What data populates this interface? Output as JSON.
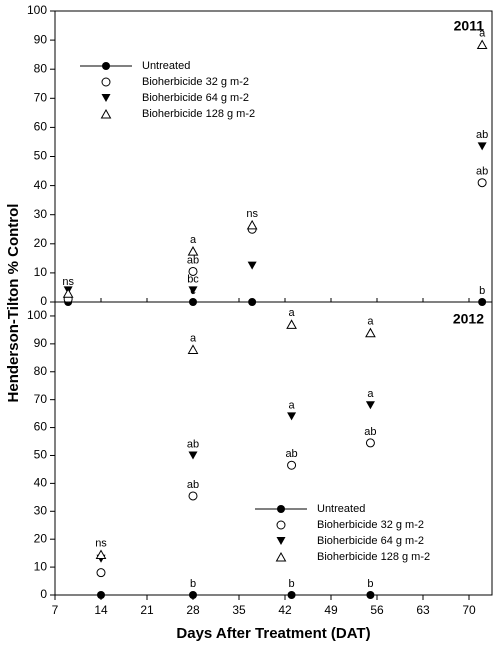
{
  "chart_data": [
    {
      "type": "scatter",
      "panel_label": "2011",
      "y_label": "Henderson-Tilton % Control",
      "x": [
        9,
        28,
        37,
        72
      ],
      "xlim": [
        7,
        73.5
      ],
      "xticks": [
        7,
        14,
        21,
        28,
        35,
        42,
        49,
        56,
        63,
        70
      ],
      "ylim": [
        0,
        100
      ],
      "yticks": [
        0,
        10,
        20,
        30,
        40,
        50,
        60,
        70,
        80,
        90,
        100
      ],
      "legend": "upper left",
      "series": [
        {
          "name": "Untreated",
          "marker": "filled-circle",
          "line": true,
          "color": "#000000",
          "values": [
            0,
            0,
            0,
            0
          ],
          "letters": [
            null,
            "c",
            null,
            "b"
          ]
        },
        {
          "name": "Bioherbicide 32 g m-2",
          "marker": "open-circle",
          "line": false,
          "color": "#000000",
          "values": [
            1,
            10.5,
            25,
            41
          ],
          "letters": [
            null,
            "ab",
            null,
            "ab"
          ]
        },
        {
          "name": "Bioherbicide 64 g m-2",
          "marker": "filled-down-triangle",
          "line": false,
          "color": "#000000",
          "values": [
            4,
            4,
            12.5,
            53.5
          ],
          "letters": [
            null,
            "bc",
            null,
            "ab"
          ]
        },
        {
          "name": "Bioherbicide 128 g m-2",
          "marker": "open-up-triangle",
          "line": false,
          "color": "#000000",
          "values": [
            3,
            17.5,
            26.5,
            88.5
          ],
          "letters": [
            "ns",
            "a",
            "ns",
            "a"
          ]
        }
      ]
    },
    {
      "type": "scatter",
      "panel_label": "2012",
      "x_label": "Days After Treatment (DAT)",
      "x": [
        14,
        28,
        43,
        55
      ],
      "xlim": [
        7,
        73.5
      ],
      "xticks": [
        7,
        14,
        21,
        28,
        35,
        42,
        49,
        56,
        63,
        70
      ],
      "ylim": [
        0,
        105
      ],
      "yticks": [
        0,
        10,
        20,
        30,
        40,
        50,
        60,
        70,
        80,
        90,
        100
      ],
      "legend": "lower right",
      "series": [
        {
          "name": "Untreated",
          "marker": "filled-circle",
          "line": true,
          "color": "#000000",
          "values": [
            0,
            0,
            0,
            0
          ],
          "letters": [
            null,
            "b",
            "b",
            "b"
          ]
        },
        {
          "name": "Bioherbicide 32 g m-2",
          "marker": "open-circle",
          "line": false,
          "color": "#000000",
          "values": [
            8,
            35.5,
            46.5,
            54.5
          ],
          "letters": [
            null,
            "ab",
            "ab",
            "ab"
          ]
        },
        {
          "name": "Bioherbicide 64 g m-2",
          "marker": "filled-down-triangle",
          "line": false,
          "color": "#000000",
          "values": [
            13,
            50,
            64,
            68
          ],
          "letters": [
            null,
            "ab",
            "a",
            "a"
          ]
        },
        {
          "name": "Bioherbicide 128 g m-2",
          "marker": "open-up-triangle",
          "line": false,
          "color": "#000000",
          "values": [
            14.5,
            88,
            97,
            94
          ],
          "letters": [
            "ns",
            "a",
            "a",
            "a"
          ]
        }
      ]
    }
  ]
}
